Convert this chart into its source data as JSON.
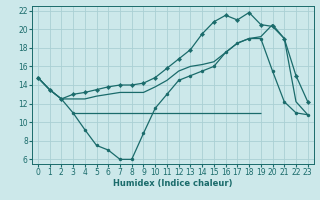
{
  "xlabel": "Humidex (Indice chaleur)",
  "xlim": [
    -0.5,
    23.5
  ],
  "ylim": [
    5.5,
    22.5
  ],
  "xticks": [
    0,
    1,
    2,
    3,
    4,
    5,
    6,
    7,
    8,
    9,
    10,
    11,
    12,
    13,
    14,
    15,
    16,
    17,
    18,
    19,
    20,
    21,
    22,
    23
  ],
  "yticks": [
    6,
    8,
    10,
    12,
    14,
    16,
    18,
    20,
    22
  ],
  "background_color": "#cce8ea",
  "grid_color": "#aad0d4",
  "line_color": "#1a6b6b",
  "line_upper_x": [
    0,
    1,
    2,
    3,
    4,
    5,
    6,
    7,
    8,
    9,
    10,
    11,
    12,
    13,
    14,
    15,
    16,
    17,
    18,
    19,
    20,
    21,
    22,
    23
  ],
  "line_upper_y": [
    14.8,
    13.5,
    12.5,
    13.0,
    13.2,
    13.5,
    13.8,
    14.0,
    14.0,
    14.2,
    14.8,
    15.8,
    16.8,
    17.8,
    19.5,
    20.8,
    21.5,
    21.0,
    21.8,
    20.5,
    20.3,
    19.0,
    15.0,
    12.2
  ],
  "line_mid_x": [
    0,
    1,
    2,
    3,
    4,
    5,
    6,
    7,
    8,
    9,
    10,
    11,
    12,
    13,
    14,
    15,
    16,
    17,
    18,
    19,
    20,
    21,
    22,
    23
  ],
  "line_mid_y": [
    14.8,
    13.5,
    12.5,
    12.5,
    12.5,
    12.8,
    13.0,
    13.2,
    13.2,
    13.2,
    13.8,
    14.5,
    15.5,
    16.0,
    16.2,
    16.5,
    17.5,
    18.5,
    19.0,
    19.2,
    20.5,
    19.0,
    12.2,
    10.8
  ],
  "line_lower_x": [
    0,
    1,
    2,
    3,
    4,
    5,
    6,
    7,
    8,
    9,
    10,
    11,
    12,
    13,
    14,
    15,
    16,
    17,
    18,
    19,
    20,
    21,
    22,
    23
  ],
  "line_lower_y": [
    14.8,
    13.5,
    12.5,
    11.0,
    9.2,
    7.5,
    7.0,
    6.0,
    6.0,
    8.8,
    11.5,
    13.0,
    14.5,
    15.0,
    15.5,
    16.0,
    17.5,
    18.5,
    19.0,
    19.0,
    15.5,
    12.2,
    11.0,
    10.8
  ],
  "hline_y": 11.0,
  "hline_x_start": 3,
  "hline_x_end": 19
}
